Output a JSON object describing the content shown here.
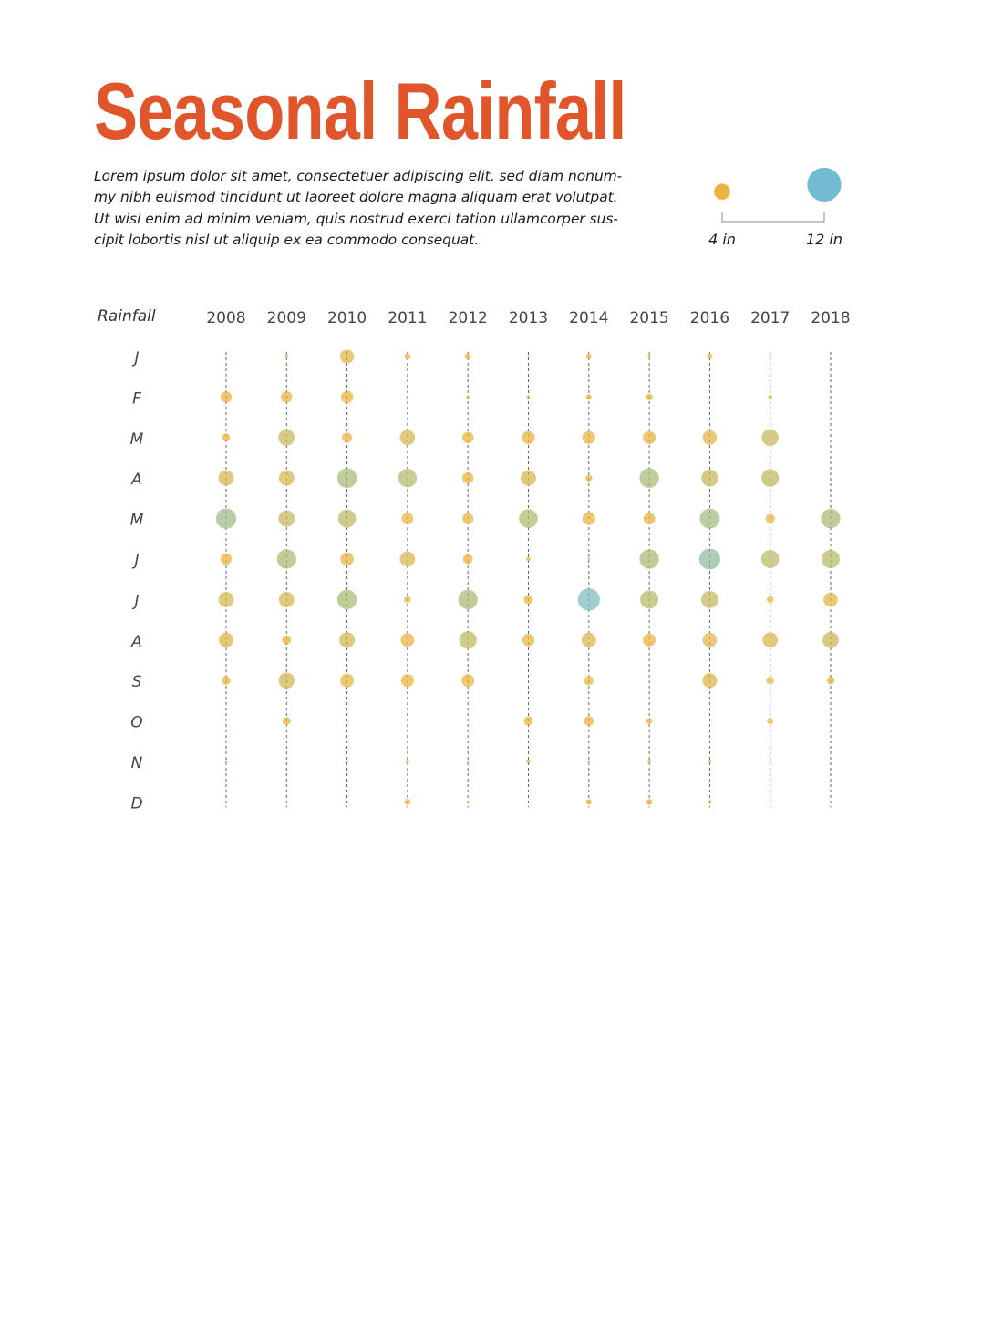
{
  "colors": {
    "title": "#e0552a",
    "small": "#ebb43c",
    "mid": "#a8bc78",
    "large": "#73bbd2",
    "guide": "#666666"
  },
  "header": {
    "title": "Seasonal Rainfall",
    "description_lines": [
      "Lorem ipsum dolor sit amet, consectetuer adipiscing elit, sed diam nonum-",
      "my nibh euismod tincidunt ut laoreet dolore magna aliquam erat volutpat.",
      "Ut wisi enim ad minim veniam, quis nostrud exerci tation ullamcorper sus-",
      "cipit lobortis nisl ut aliquip ex ea commodo consequat."
    ]
  },
  "legend": {
    "items": [
      {
        "label": "4 in",
        "value": 4
      },
      {
        "label": "12 in",
        "value": 12
      }
    ]
  },
  "chart_data": {
    "type": "bubble",
    "ylabel": "Rainfall",
    "years": [
      "2008",
      "2009",
      "2010",
      "2011",
      "2012",
      "2013",
      "2014",
      "2015",
      "2016",
      "2017",
      "2018"
    ],
    "months": [
      "J",
      "F",
      "M",
      "A",
      "M",
      "J",
      "J",
      "A",
      "S",
      "O",
      "N",
      "D"
    ],
    "size_unit": "in",
    "values": [
      [
        0,
        0.2,
        3,
        0.6,
        0.6,
        0.1,
        0.5,
        0.2,
        0.5,
        0.1,
        0
      ],
      [
        2,
        2,
        2.3,
        0.1,
        0.2,
        0.2,
        0.5,
        0.7,
        0,
        0.3,
        0
      ],
      [
        1,
        4.2,
        1.6,
        3.6,
        2,
        2.7,
        2.6,
        2.6,
        3.2,
        4.4,
        0
      ],
      [
        3.7,
        3.7,
        6,
        5.4,
        2,
        3.7,
        0.7,
        6,
        4.4,
        4.8,
        0
      ],
      [
        6.4,
        4.2,
        5,
        2.1,
        1.9,
        5.5,
        2.6,
        2.1,
        6.2,
        1.3,
        5.8
      ],
      [
        2,
        5.8,
        2.7,
        3.6,
        1.5,
        0.3,
        0.1,
        5.9,
        6.9,
        5,
        5.2
      ],
      [
        3.7,
        3.7,
        5.9,
        0.7,
        5.9,
        1.3,
        7.6,
        5.1,
        4.6,
        0.7,
        3.2
      ],
      [
        3.3,
        1.3,
        3.8,
        2.9,
        4.8,
        2.4,
        3.3,
        2.5,
        3.2,
        3.6,
        4.1
      ],
      [
        1.2,
        3.9,
        2.9,
        2.5,
        2.5,
        0,
        1.4,
        0,
        3.4,
        0.9,
        0.9
      ],
      [
        0,
        1,
        0.1,
        0,
        0,
        1.3,
        1.5,
        0.6,
        0,
        0.6,
        0
      ],
      [
        0.1,
        0,
        0.1,
        0.2,
        0.1,
        0.3,
        0.1,
        0.2,
        0.2,
        0.1,
        0
      ],
      [
        0,
        0,
        0,
        0.6,
        0.1,
        0,
        0.5,
        0.6,
        0.2,
        0,
        0
      ]
    ]
  }
}
